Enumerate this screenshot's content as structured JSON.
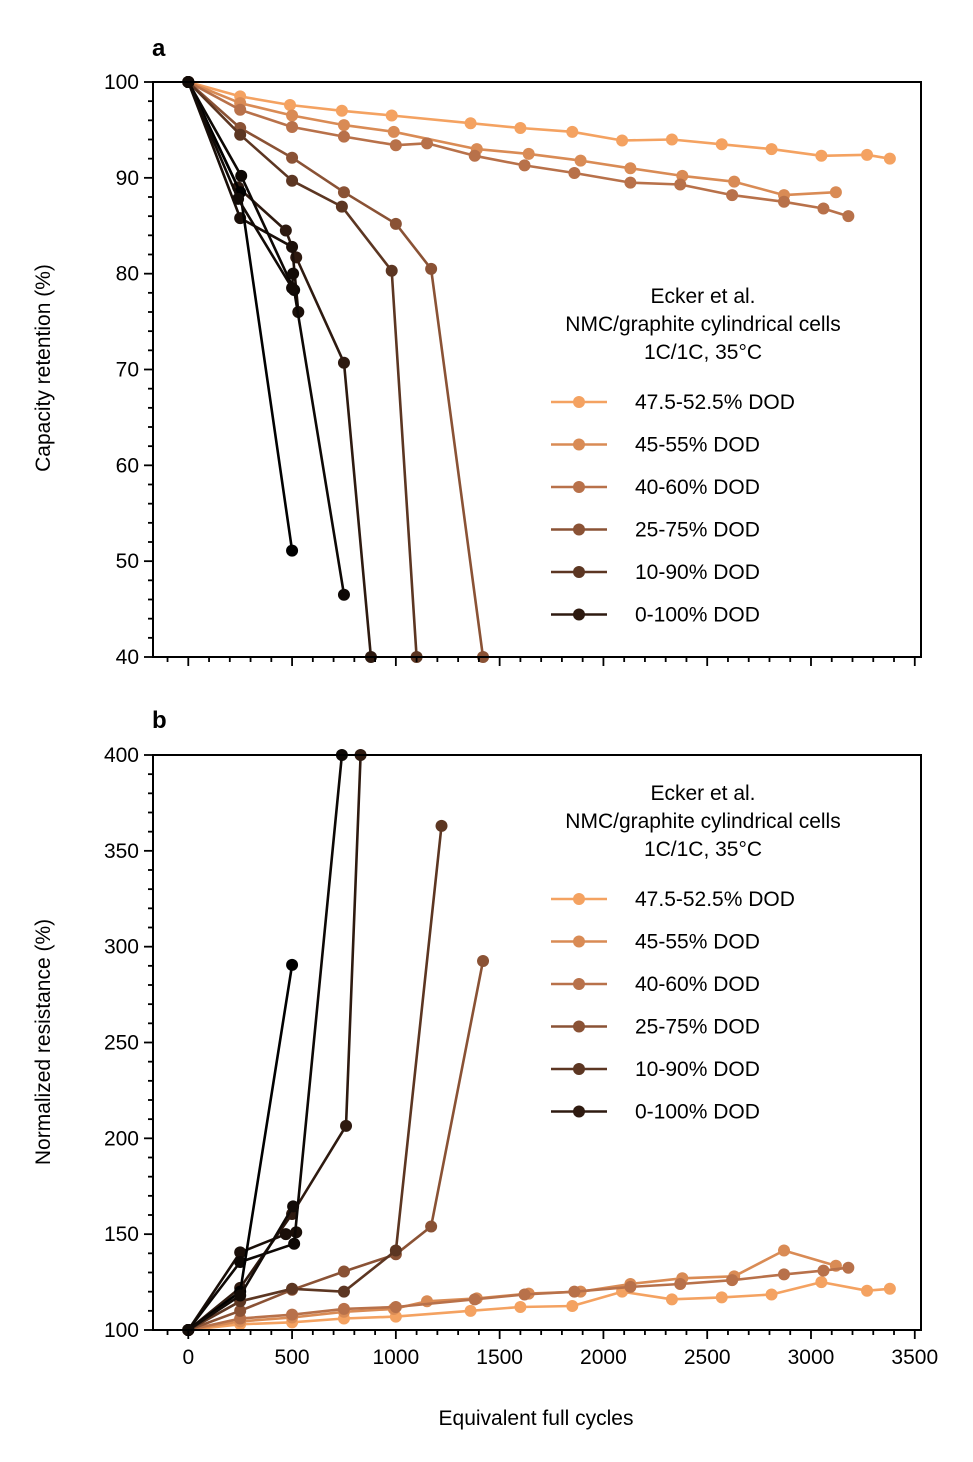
{
  "chart_data": [
    {
      "type": "line",
      "panel_label": "a",
      "ylabel": "Capacity retention (%)",
      "xlabel": "",
      "xlim": [
        -170,
        3530
      ],
      "ylim": [
        40,
        100
      ],
      "xticks": [
        0,
        500,
        1000,
        1500,
        2000,
        2500,
        3000,
        3500
      ],
      "xtick_labels": [
        "",
        "",
        "",
        "",
        "",
        "",
        "",
        ""
      ],
      "yticks": [
        40,
        50,
        60,
        70,
        80,
        90,
        100
      ],
      "ytick_labels": [
        "40",
        "50",
        "60",
        "70",
        "80",
        "90",
        "100"
      ],
      "legend": {
        "title": [
          "Ecker et al.",
          "NMC/graphite cylindrical cells",
          "1C/1C, 35°C"
        ],
        "position": "center-right"
      },
      "series": [
        {
          "name": "47.5-52.5% DOD",
          "color": "#F4A261",
          "x": [
            0,
            250,
            490,
            740,
            980,
            1360,
            1600,
            1850,
            2090,
            2330,
            2570,
            2810,
            3050,
            3270,
            3380
          ],
          "y": [
            100,
            98.5,
            97.6,
            97.0,
            96.5,
            95.7,
            95.2,
            94.8,
            93.9,
            94.0,
            93.5,
            93.0,
            92.3,
            92.4,
            92.0
          ]
        },
        {
          "name": "45-55% DOD",
          "color": "#D98B55",
          "x": [
            0,
            250,
            500,
            750,
            990,
            1390,
            1640,
            1890,
            2130,
            2380,
            2630,
            2870,
            3120
          ],
          "y": [
            100,
            97.8,
            96.5,
            95.5,
            94.8,
            93.0,
            92.5,
            91.8,
            91.0,
            90.2,
            89.6,
            88.2,
            88.5
          ]
        },
        {
          "name": "40-60% DOD",
          "color": "#B8714A",
          "x": [
            0,
            250,
            500,
            750,
            1000,
            1150,
            1380,
            1620,
            1860,
            2130,
            2370,
            2620,
            2870,
            3060,
            3180
          ],
          "y": [
            100,
            97.1,
            95.3,
            94.3,
            93.4,
            93.6,
            92.3,
            91.3,
            90.5,
            89.5,
            89.3,
            88.2,
            87.5,
            86.8,
            86.0
          ]
        },
        {
          "name": "25-75% DOD",
          "color": "#8A5235",
          "x": [
            0,
            250,
            500,
            750,
            1000,
            1170,
            1420
          ],
          "y": [
            100,
            95.2,
            92.1,
            88.5,
            85.2,
            80.5,
            40
          ]
        },
        {
          "name": "10-90% DOD",
          "color": "#5C3622",
          "x": [
            0,
            250,
            500,
            740,
            980,
            1100
          ],
          "y": [
            100,
            94.5,
            89.7,
            87.0,
            80.3,
            40
          ]
        },
        {
          "name": "0-100% DOD",
          "color": "#2E1A10",
          "x": [
            0,
            240,
            470,
            520,
            750,
            880
          ],
          "y": [
            100,
            89.0,
            84.5,
            81.7,
            70.7,
            40
          ]
        },
        {
          "name": "",
          "color": "#1A0F09",
          "x": [
            0,
            250,
            500,
            530
          ],
          "y": [
            100,
            85.8,
            82.8,
            76.0
          ]
        },
        {
          "name": "",
          "color": "#0D0805",
          "x": [
            0,
            255,
            510,
            750
          ],
          "y": [
            100,
            90.2,
            78.3,
            46.5
          ]
        },
        {
          "name": "",
          "color": "#000000",
          "x": [
            0,
            250,
            500
          ],
          "y": [
            100,
            88.5,
            51.1
          ]
        },
        {
          "name": "",
          "color": "#120B07",
          "x": [
            0,
            240,
            500,
            505
          ],
          "y": [
            100,
            87.8,
            78.5,
            80.0
          ]
        }
      ]
    },
    {
      "type": "line",
      "panel_label": "b",
      "ylabel": "Normalized resistance (%)",
      "xlabel": "Equivalent full cycles",
      "xlim": [
        -170,
        3530
      ],
      "ylim": [
        100,
        400
      ],
      "xticks": [
        0,
        500,
        1000,
        1500,
        2000,
        2500,
        3000,
        3500
      ],
      "xtick_labels": [
        "0",
        "500",
        "1000",
        "1500",
        "2000",
        "2500",
        "3000",
        "3500"
      ],
      "yticks": [
        100,
        150,
        200,
        250,
        300,
        350,
        400
      ],
      "ytick_labels": [
        "100",
        "150",
        "200",
        "250",
        "300",
        "350",
        "400"
      ],
      "legend": {
        "title": [
          "Ecker et al.",
          "NMC/graphite cylindrical cells",
          "1C/1C, 35°C"
        ],
        "position": "upper-right"
      },
      "series": [
        {
          "name": "47.5-52.5% DOD",
          "color": "#F4A261",
          "x": [
            0,
            250,
            500,
            750,
            1000,
            1360,
            1600,
            1850,
            2090,
            2330,
            2570,
            2810,
            3050,
            3270,
            3380
          ],
          "y": [
            100,
            103,
            104,
            106,
            107,
            110,
            112,
            112.5,
            120,
            116,
            117,
            118.5,
            125,
            120.5,
            121.5
          ]
        },
        {
          "name": "45-55% DOD",
          "color": "#D98B55",
          "x": [
            0,
            250,
            500,
            750,
            990,
            1150,
            1390,
            1640,
            1890,
            2130,
            2380,
            2630,
            2870,
            3120
          ],
          "y": [
            100,
            104.5,
            106.5,
            109.5,
            111,
            115,
            116.5,
            119,
            120,
            124,
            127,
            128,
            141.5,
            133.5
          ]
        },
        {
          "name": "40-60% DOD",
          "color": "#B8714A",
          "x": [
            0,
            250,
            500,
            750,
            1000,
            1380,
            1620,
            1860,
            2130,
            2370,
            2620,
            2870,
            3060,
            3180
          ],
          "y": [
            100,
            106,
            108,
            111,
            112,
            116,
            118.5,
            120,
            122.5,
            124,
            126,
            129,
            131,
            132.5
          ]
        },
        {
          "name": "25-75% DOD",
          "color": "#8A5235",
          "x": [
            0,
            250,
            500,
            750,
            1000,
            1170,
            1420
          ],
          "y": [
            100,
            110,
            121,
            130.5,
            139.5,
            154,
            292.5
          ]
        },
        {
          "name": "10-90% DOD",
          "color": "#5C3622",
          "x": [
            0,
            250,
            500,
            750,
            1000,
            1220
          ],
          "y": [
            100,
            115,
            121.5,
            120,
            141.5,
            363
          ]
        },
        {
          "name": "0-100% DOD",
          "color": "#2E1A10",
          "x": [
            0,
            250,
            500,
            760,
            830
          ],
          "y": [
            100,
            122,
            160.5,
            206.5,
            400
          ]
        },
        {
          "name": "",
          "color": "#1A0F09",
          "x": [
            0,
            250,
            470,
            520
          ],
          "y": [
            100,
            140.5,
            150,
            151
          ]
        },
        {
          "name": "",
          "color": "#0D0805",
          "x": [
            0,
            250,
            510,
            740
          ],
          "y": [
            100,
            135.5,
            145,
            400
          ]
        },
        {
          "name": "",
          "color": "#000000",
          "x": [
            0,
            250,
            500
          ],
          "y": [
            100,
            120,
            290.5
          ]
        },
        {
          "name": "",
          "color": "#120B07",
          "x": [
            0,
            250,
            505
          ],
          "y": [
            100,
            118,
            164.5
          ]
        }
      ]
    }
  ]
}
